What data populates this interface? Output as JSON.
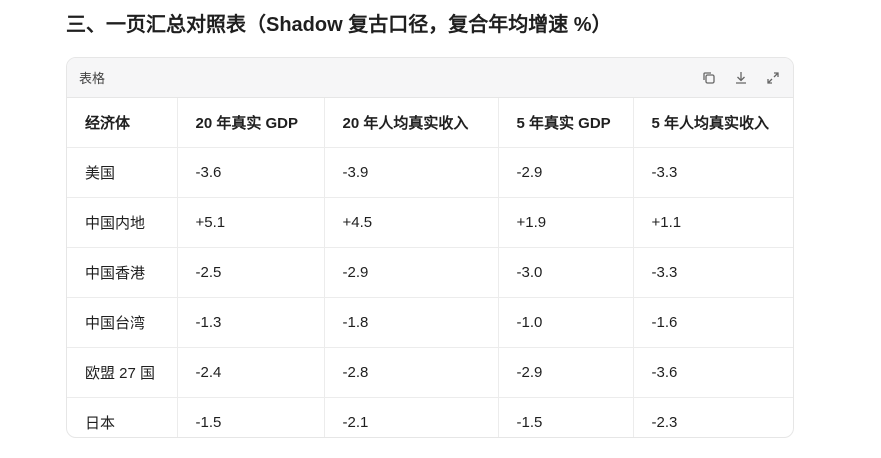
{
  "heading": "三、一页汇总对照表（Shadow 复古口径，复合年均增速 %）",
  "table": {
    "label": "表格",
    "columns": [
      "经济体",
      "20 年真实 GDP",
      "20 年人均真实收入",
      "5 年真实 GDP",
      "5 年人均真实收入"
    ],
    "rows": [
      [
        "美国",
        "-3.6",
        "-3.9",
        "-2.9",
        "-3.3"
      ],
      [
        "中国内地",
        "+5.1",
        "+4.5",
        "+1.9",
        "+1.1"
      ],
      [
        "中国香港",
        "-2.5",
        "-2.9",
        "-3.0",
        "-3.3"
      ],
      [
        "中国台湾",
        "-1.3",
        "-1.8",
        "-1.0",
        "-1.6"
      ],
      [
        "欧盟 27 国",
        "-2.4",
        "-2.8",
        "-2.9",
        "-3.6"
      ],
      [
        "日本",
        "-1.5",
        "-2.1",
        "-1.5",
        "-2.3"
      ]
    ]
  }
}
